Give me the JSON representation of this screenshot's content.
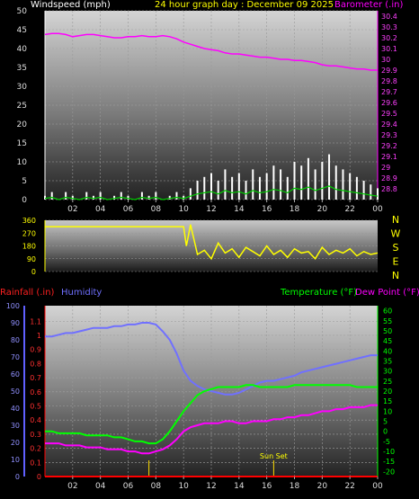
{
  "header": {
    "wind_title": "Windspeed (mph)",
    "graph_title": "24 hour graph day : December 09 2025",
    "baro_title": "Barometer (.in)"
  },
  "bottom_header": {
    "rain_title": "Rainfall (.in)",
    "humidity_title": "Humidity",
    "temp_title": "Temperature (°F)",
    "dew_title": "Dew Point (°F)"
  },
  "annotations": {
    "sunset": "Sun Set"
  },
  "colors": {
    "wind": "#ffffff",
    "wind_avg": "#00cc00",
    "barometer": "#ff00ff",
    "direction": "#ffff00",
    "humidity": "#7070ff",
    "temperature": "#00ff00",
    "dewpoint": "#ff00ff",
    "rainfall": "#ff0000",
    "sunset": "#ffdd00"
  },
  "x_ticks": [
    "02",
    "04",
    "06",
    "08",
    "10",
    "12",
    "14",
    "16",
    "18",
    "20",
    "22",
    "00"
  ],
  "chart_data": [
    {
      "type": "line",
      "name": "wind-barometer",
      "x": [
        0,
        0.5,
        1,
        1.5,
        2,
        2.5,
        3,
        3.5,
        4,
        4.5,
        5,
        5.5,
        6,
        6.5,
        7,
        7.5,
        8,
        8.5,
        9,
        9.5,
        10,
        10.5,
        11,
        11.5,
        12,
        12.5,
        13,
        13.5,
        14,
        14.5,
        15,
        15.5,
        16,
        16.5,
        17,
        17.5,
        18,
        18.5,
        19,
        19.5,
        20,
        20.5,
        21,
        21.5,
        22,
        22.5,
        23,
        23.5,
        24
      ],
      "series": [
        {
          "name": "Windspeed (mph)",
          "axis": "left",
          "values": [
            1,
            2,
            0,
            2,
            1,
            0,
            2,
            1,
            2,
            0,
            1,
            2,
            1,
            0,
            2,
            1,
            2,
            0,
            1,
            2,
            1,
            3,
            5,
            6,
            7,
            5,
            8,
            6,
            7,
            5,
            8,
            6,
            7,
            9,
            8,
            6,
            10,
            9,
            11,
            8,
            10,
            12,
            9,
            8,
            7,
            6,
            5,
            4,
            3
          ]
        },
        {
          "name": "Barometer (.in)",
          "axis": "right",
          "values": [
            30.23,
            30.24,
            30.24,
            30.23,
            30.21,
            30.22,
            30.23,
            30.23,
            30.22,
            30.21,
            30.2,
            30.2,
            30.21,
            30.21,
            30.22,
            30.21,
            30.21,
            30.22,
            30.21,
            30.19,
            30.16,
            30.14,
            30.12,
            30.1,
            30.09,
            30.08,
            30.06,
            30.05,
            30.05,
            30.04,
            30.03,
            30.02,
            30.02,
            30.01,
            30.0,
            30.0,
            29.99,
            29.99,
            29.98,
            29.97,
            29.95,
            29.94,
            29.94,
            29.93,
            29.92,
            29.91,
            29.91,
            29.9,
            29.9
          ]
        }
      ],
      "xlabel": "",
      "ylabel": "Windspeed (mph)",
      "ylim": [
        0,
        50
      ],
      "y2label": "Barometer (.in)",
      "y2lim": [
        28.7,
        30.45
      ],
      "yticks": [
        0,
        5,
        10,
        15,
        20,
        25,
        30,
        35,
        40,
        45,
        50
      ],
      "y2ticks": [
        "28.8",
        "28.9",
        "29",
        "29.1",
        "29.2",
        "29.3",
        "29.4",
        "29.5",
        "29.6",
        "29.7",
        "29.8",
        "29.9",
        "30",
        "30.1",
        "30.2",
        "30.3",
        "30.4"
      ]
    },
    {
      "type": "line",
      "name": "wind-direction",
      "x": [
        0,
        1,
        2,
        3,
        4,
        5,
        6,
        7,
        8,
        9,
        10,
        10.2,
        10.5,
        11,
        11.5,
        12,
        12.5,
        13,
        13.5,
        14,
        14.5,
        15,
        15.5,
        16,
        16.5,
        17,
        17.5,
        18,
        18.5,
        19,
        19.5,
        20,
        20.5,
        21,
        21.5,
        22,
        22.5,
        23,
        23.5,
        24
      ],
      "series": [
        {
          "name": "Wind direction (deg)",
          "values": [
            315,
            315,
            315,
            315,
            315,
            315,
            315,
            315,
            315,
            315,
            315,
            180,
            330,
            120,
            150,
            90,
            200,
            130,
            160,
            100,
            170,
            140,
            110,
            180,
            120,
            150,
            100,
            160,
            130,
            140,
            90,
            170,
            120,
            150,
            130,
            160,
            110,
            140,
            120,
            130
          ]
        }
      ],
      "ylim": [
        0,
        360
      ],
      "yticks": [
        0,
        90,
        180,
        270,
        360
      ],
      "direction_labels": [
        "N",
        "W",
        "S",
        "E",
        "N"
      ]
    },
    {
      "type": "line",
      "name": "humidity-temperature",
      "x": [
        0,
        0.5,
        1,
        1.5,
        2,
        2.5,
        3,
        3.5,
        4,
        4.5,
        5,
        5.5,
        6,
        6.5,
        7,
        7.5,
        8,
        8.5,
        9,
        9.5,
        10,
        10.5,
        11,
        11.5,
        12,
        12.5,
        13,
        13.5,
        14,
        14.5,
        15,
        15.5,
        16,
        16.5,
        17,
        17.5,
        18,
        18.5,
        19,
        19.5,
        20,
        20.5,
        21,
        21.5,
        22,
        22.5,
        23,
        23.5,
        24
      ],
      "series": [
        {
          "name": "Humidity",
          "axis": "left",
          "values": [
            82,
            82,
            83,
            84,
            84,
            85,
            86,
            87,
            87,
            87,
            88,
            88,
            89,
            89,
            90,
            90,
            89,
            85,
            80,
            72,
            62,
            56,
            53,
            51,
            50,
            49,
            48,
            48,
            49,
            51,
            53,
            55,
            56,
            56,
            57,
            58,
            59,
            61,
            62,
            63,
            64,
            65,
            66,
            67,
            68,
            69,
            70,
            71,
            71
          ]
        },
        {
          "name": "Temperature (°F)",
          "axis": "right",
          "values": [
            0,
            0,
            -1,
            -1,
            -1,
            -1,
            -2,
            -2,
            -2,
            -2,
            -3,
            -3,
            -4,
            -5,
            -5,
            -6,
            -6,
            -4,
            0,
            5,
            10,
            14,
            18,
            20,
            21,
            22,
            22,
            22,
            22,
            23,
            23,
            22,
            22,
            22,
            22,
            22,
            23,
            23,
            23,
            23,
            23,
            23,
            23,
            23,
            23,
            22,
            22,
            22,
            22
          ]
        },
        {
          "name": "Dew Point (°F)",
          "axis": "right",
          "values": [
            -6,
            -6,
            -6,
            -7,
            -7,
            -7,
            -8,
            -8,
            -8,
            -9,
            -9,
            -9,
            -10,
            -10,
            -11,
            -11,
            -10,
            -9,
            -7,
            -4,
            0,
            2,
            3,
            4,
            4,
            4,
            5,
            5,
            4,
            4,
            5,
            5,
            5,
            6,
            6,
            7,
            7,
            8,
            8,
            9,
            10,
            10,
            11,
            11,
            12,
            12,
            12,
            13,
            13
          ]
        },
        {
          "name": "Rainfall (.in)",
          "axis": "rain",
          "values": [
            0,
            0,
            0,
            0,
            0,
            0,
            0,
            0,
            0,
            0,
            0,
            0,
            0,
            0,
            0,
            0,
            0,
            0,
            0,
            0,
            0,
            0,
            0,
            0,
            0,
            0,
            0,
            0,
            0,
            0,
            0,
            0,
            0,
            0,
            0,
            0,
            0,
            0,
            0,
            0,
            0,
            0,
            0,
            0,
            0,
            0,
            0,
            0,
            0
          ]
        }
      ],
      "ylim": [
        0,
        100
      ],
      "yticks": [
        0,
        10,
        20,
        30,
        40,
        50,
        60,
        70,
        80,
        90,
        100
      ],
      "y2lim": [
        -22.5,
        62.5
      ],
      "y2ticks": [
        -20,
        -15,
        -10,
        -5,
        0,
        5,
        10,
        15,
        20,
        25,
        30,
        35,
        40,
        45,
        50,
        55,
        60
      ],
      "rain_lim": [
        0,
        1.21
      ],
      "rain_ticks": [
        "0",
        "0.1",
        "0.2",
        "0.3",
        "0.4",
        "0.5",
        "0.6",
        "0.7",
        "0.8",
        "0.9",
        "1",
        "1.1"
      ],
      "markers": [
        {
          "x": 7.5
        },
        {
          "x": 16.5,
          "label": "Sun Set"
        }
      ]
    }
  ]
}
